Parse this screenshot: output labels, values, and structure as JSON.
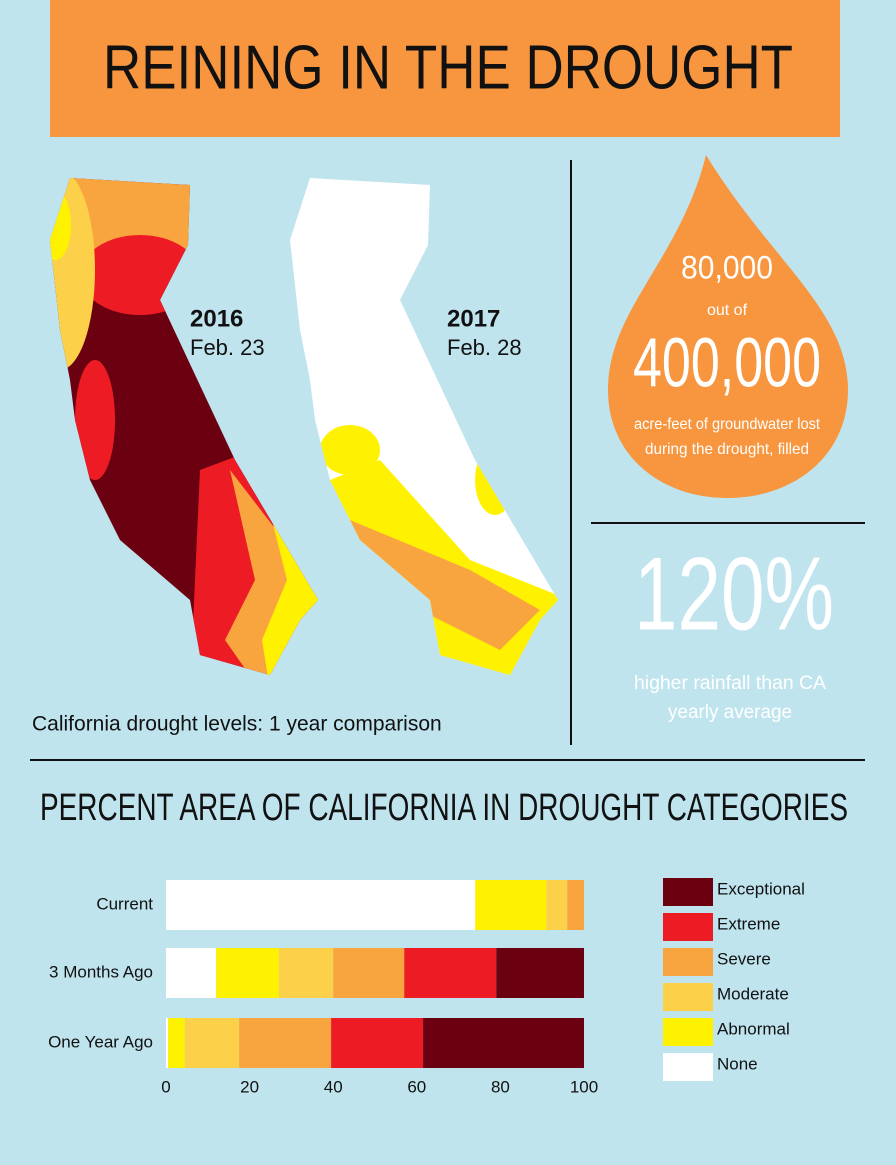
{
  "header": {
    "title": "REINING IN THE DROUGHT"
  },
  "maps": {
    "left": {
      "year": "2016",
      "date": "Feb. 23"
    },
    "right": {
      "year": "2017",
      "date": "Feb. 28"
    },
    "caption": "California drought levels: 1 year comparison"
  },
  "stats": {
    "drop": {
      "filled": "80,000",
      "connector": "out of",
      "total": "400,000",
      "description": [
        "acre-feet of groundwater lost",
        "during the drought, filled"
      ]
    },
    "rainfall": {
      "value": "120%",
      "description": [
        "higher rainfall than CA",
        "yearly average"
      ]
    }
  },
  "chart_data": {
    "type": "bar",
    "orientation": "horizontal",
    "stacked": true,
    "title": "PERCENT AREA OF CALIFORNIA IN DROUGHT CATEGORIES",
    "categories": [
      "Current",
      "3 Months Ago",
      "One Year Ago"
    ],
    "series": [
      {
        "name": "Exceptional",
        "color": "#6b0010",
        "values": [
          0,
          21,
          38.5
        ]
      },
      {
        "name": "Extreme",
        "color": "#ed1c24",
        "values": [
          0,
          22,
          22
        ]
      },
      {
        "name": "Severe",
        "color": "#f9a53f",
        "values": [
          4,
          17,
          22
        ]
      },
      {
        "name": "Moderate",
        "color": "#fdd04a",
        "values": [
          5,
          13,
          13
        ]
      },
      {
        "name": "Abnormal",
        "color": "#fff200",
        "values": [
          17,
          15,
          4
        ]
      },
      {
        "name": "None",
        "color": "#ffffff",
        "values": [
          74,
          12,
          0.5
        ]
      }
    ],
    "xlim": [
      0,
      100
    ],
    "xticks": [
      0,
      20,
      40,
      60,
      80,
      100
    ],
    "grid": false,
    "legend": "right"
  }
}
